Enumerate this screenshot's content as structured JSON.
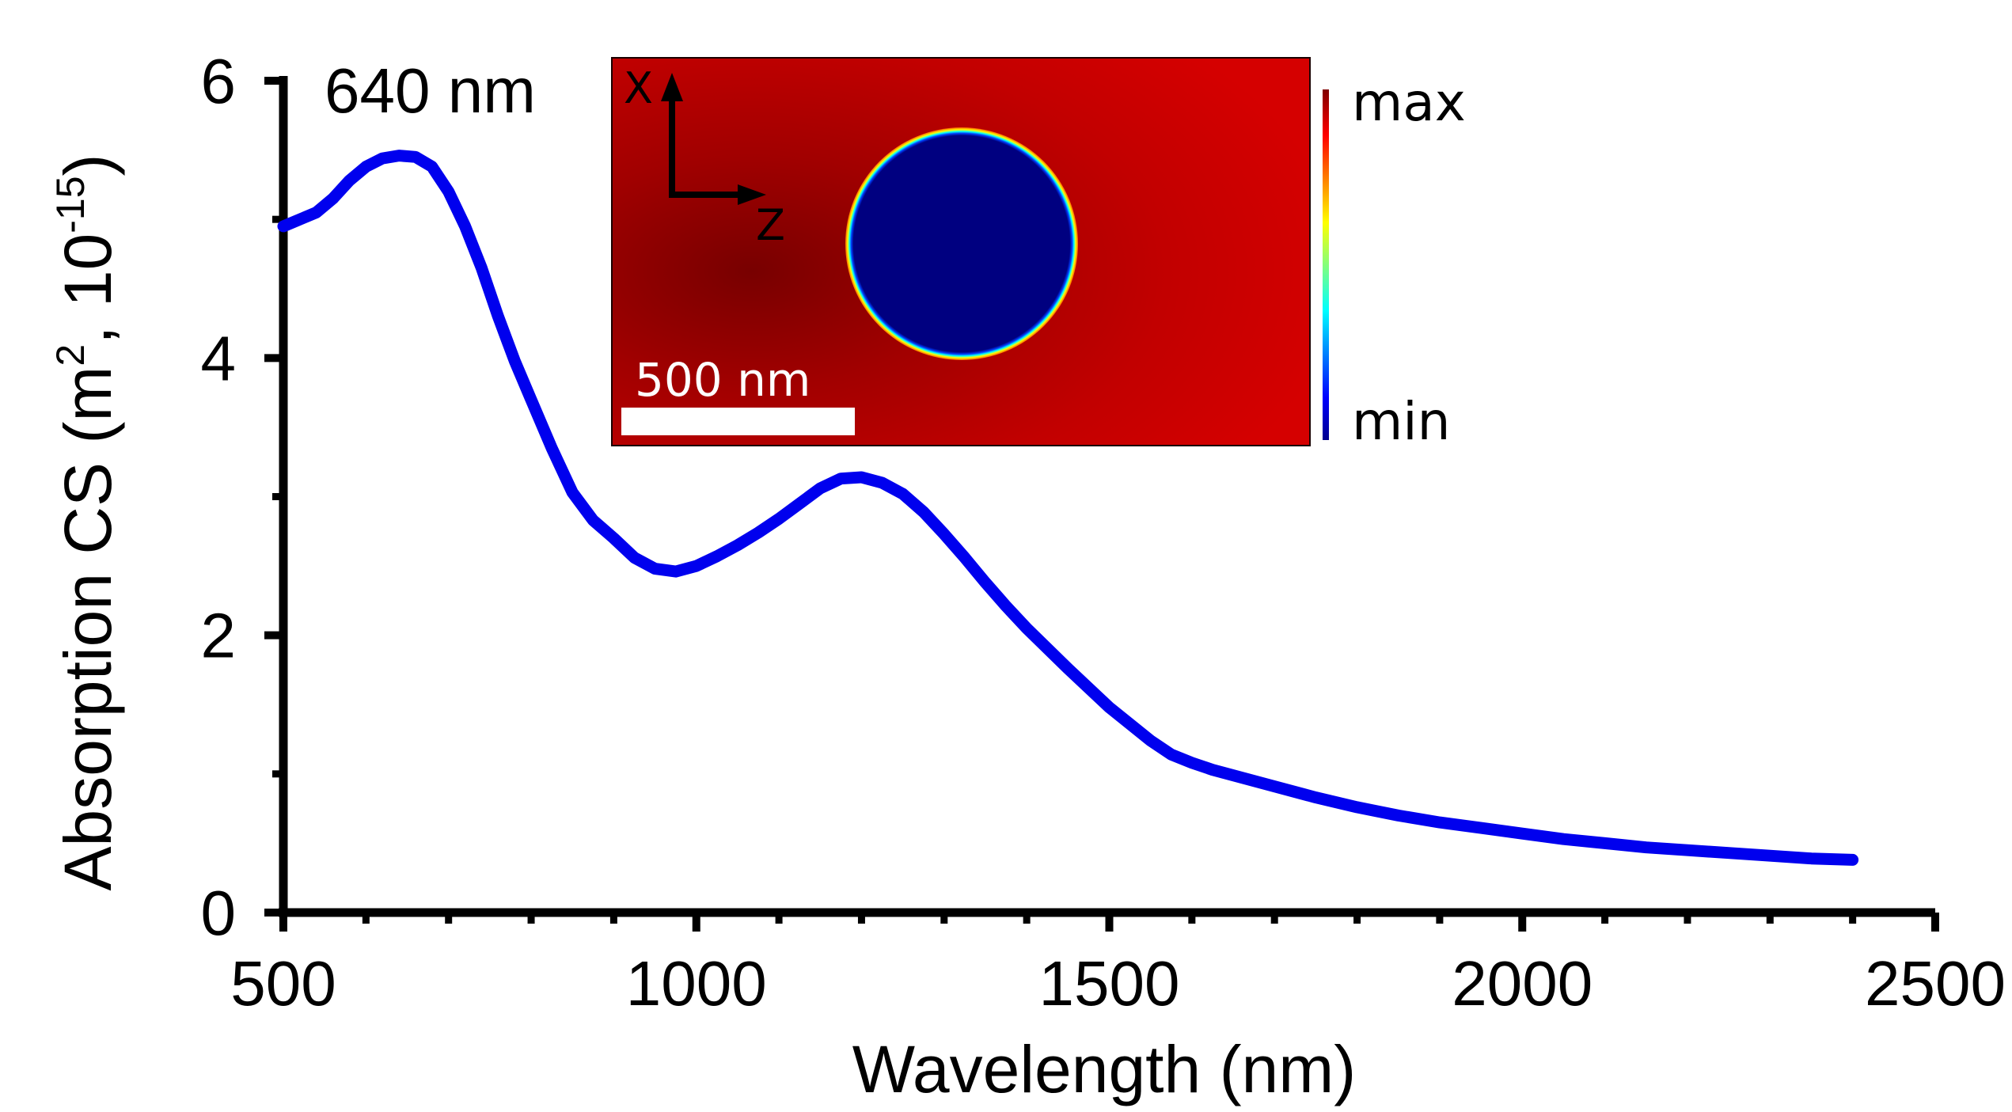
{
  "chart_data": {
    "type": "line",
    "title": "",
    "annotation": "640 nm",
    "xlabel": "Wavelength (nm)",
    "ylabel_main": "Absorption CS (m",
    "ylabel_sup1": "2",
    "ylabel_mid": ", 10",
    "ylabel_sup2": "-15",
    "ylabel_end": ")",
    "xlim": [
      500,
      2500
    ],
    "ylim": [
      0,
      6
    ],
    "xticks": [
      "500",
      "1000",
      "1500",
      "2000",
      "2500"
    ],
    "yticks": [
      "0",
      "2",
      "4",
      "6"
    ],
    "series": [
      {
        "name": "640 nm",
        "color": "#0000ee",
        "x": [
          500,
          540,
          560,
          580,
          600,
          620,
          640,
          660,
          680,
          700,
          720,
          740,
          760,
          780,
          800,
          825,
          850,
          875,
          900,
          925,
          950,
          975,
          1000,
          1025,
          1050,
          1075,
          1100,
          1125,
          1150,
          1175,
          1200,
          1225,
          1250,
          1275,
          1300,
          1325,
          1350,
          1375,
          1400,
          1450,
          1500,
          1550,
          1575,
          1600,
          1625,
          1650,
          1700,
          1750,
          1800,
          1850,
          1900,
          1950,
          2000,
          2050,
          2100,
          2150,
          2200,
          2250,
          2300,
          2350,
          2400
        ],
        "y": [
          4.95,
          5.05,
          5.15,
          5.28,
          5.38,
          5.44,
          5.46,
          5.45,
          5.38,
          5.2,
          4.95,
          4.65,
          4.3,
          3.98,
          3.7,
          3.35,
          3.03,
          2.83,
          2.7,
          2.56,
          2.48,
          2.46,
          2.5,
          2.57,
          2.65,
          2.74,
          2.84,
          2.95,
          3.06,
          3.13,
          3.14,
          3.1,
          3.02,
          2.89,
          2.73,
          2.56,
          2.38,
          2.21,
          2.05,
          1.76,
          1.48,
          1.24,
          1.14,
          1.08,
          1.03,
          0.99,
          0.91,
          0.83,
          0.76,
          0.7,
          0.65,
          0.61,
          0.57,
          0.53,
          0.5,
          0.47,
          0.45,
          0.43,
          0.41,
          0.39,
          0.38
        ]
      }
    ]
  },
  "inset": {
    "scale_bar_label": "500 nm",
    "axis_x_label": "X",
    "axis_z_label": "Z",
    "colorbar_max": "max",
    "colorbar_min": "min"
  }
}
